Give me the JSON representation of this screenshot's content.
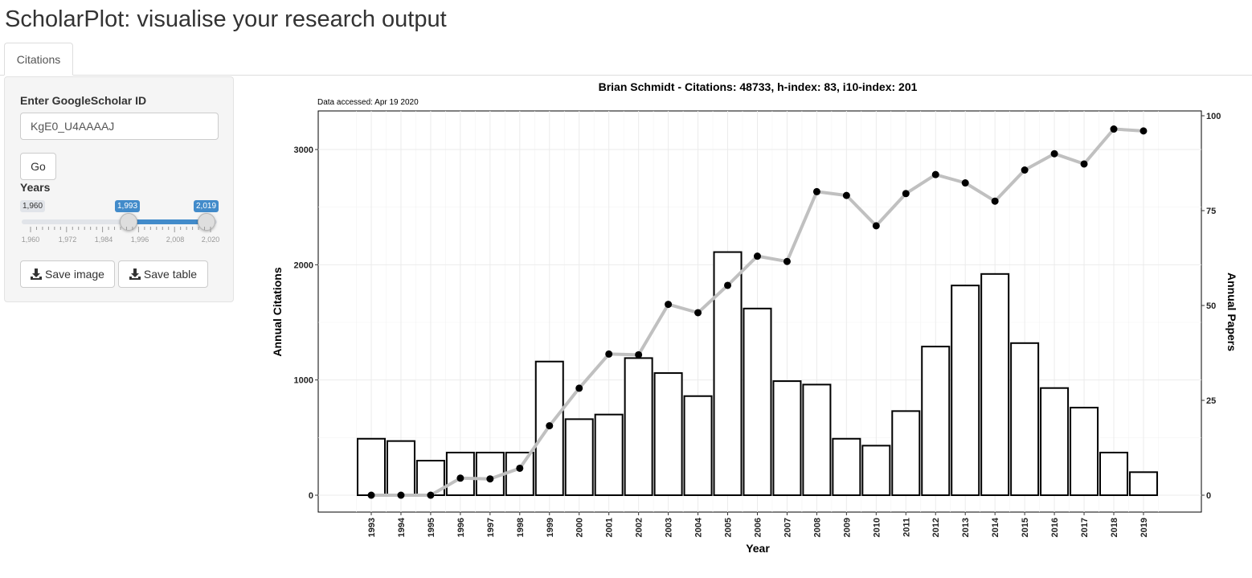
{
  "app": {
    "title": "ScholarPlot: visualise your research output"
  },
  "tabs": [
    {
      "label": "Citations",
      "active": true
    }
  ],
  "sidebar": {
    "id_label": "Enter GoogleScholar ID",
    "id_value": "KgE0_U4AAAAJ",
    "go_label": "Go",
    "years_label": "Years",
    "slider": {
      "min_label": "1,960",
      "from_label": "1,993",
      "to_label": "2,019",
      "ticks": [
        "1,960",
        "1,972",
        "1,984",
        "1,996",
        "2,008",
        "2,020"
      ],
      "accent": "#428bca"
    },
    "save_image_label": "Save image",
    "save_table_label": "Save table",
    "icons": {
      "save": "download-icon"
    }
  },
  "chart_data": {
    "type": "bar",
    "title": "Brian Schmidt - Citations: 48733, h-index: 83, i10-index: 201",
    "subtitle": "Data accessed: Apr 19 2020",
    "xlabel": "Year",
    "ylabel": "Annual Citations",
    "y2label": "Annual Papers",
    "categories": [
      "1993",
      "1994",
      "1995",
      "1996",
      "1997",
      "1998",
      "1999",
      "2000",
      "2001",
      "2002",
      "2003",
      "2004",
      "2005",
      "2006",
      "2007",
      "2008",
      "2009",
      "2010",
      "2011",
      "2012",
      "2013",
      "2014",
      "2015",
      "2016",
      "2017",
      "2018",
      "2019"
    ],
    "ylim": [
      0,
      3350
    ],
    "y_ticks": [
      0,
      1000,
      2000,
      3000
    ],
    "y2lim": [
      0,
      100
    ],
    "y2_ticks": [
      0,
      25,
      50,
      75,
      100
    ],
    "series": [
      {
        "type": "bar",
        "axis": "left",
        "fill": "#ffffff",
        "stroke": "#000000",
        "values": [
          490,
          470,
          300,
          370,
          370,
          370,
          1160,
          660,
          700,
          1190,
          1060,
          860,
          2110,
          1620,
          990,
          960,
          490,
          430,
          730,
          1290,
          1820,
          1920,
          1320,
          930,
          760,
          370,
          200
        ]
      },
      {
        "type": "line",
        "axis": "right",
        "line_color": "#c0c0c0",
        "point_color": "#000000",
        "values": [
          0,
          0,
          0,
          4.5,
          4.3,
          7.1,
          18.3,
          28.2,
          37.2,
          37,
          50.3,
          48.1,
          55.3,
          63,
          61.6,
          80,
          79,
          71,
          79.5,
          84.5,
          82.3,
          77.5,
          85.7,
          90,
          87.3,
          96.5,
          96
        ]
      }
    ],
    "grid": true
  }
}
